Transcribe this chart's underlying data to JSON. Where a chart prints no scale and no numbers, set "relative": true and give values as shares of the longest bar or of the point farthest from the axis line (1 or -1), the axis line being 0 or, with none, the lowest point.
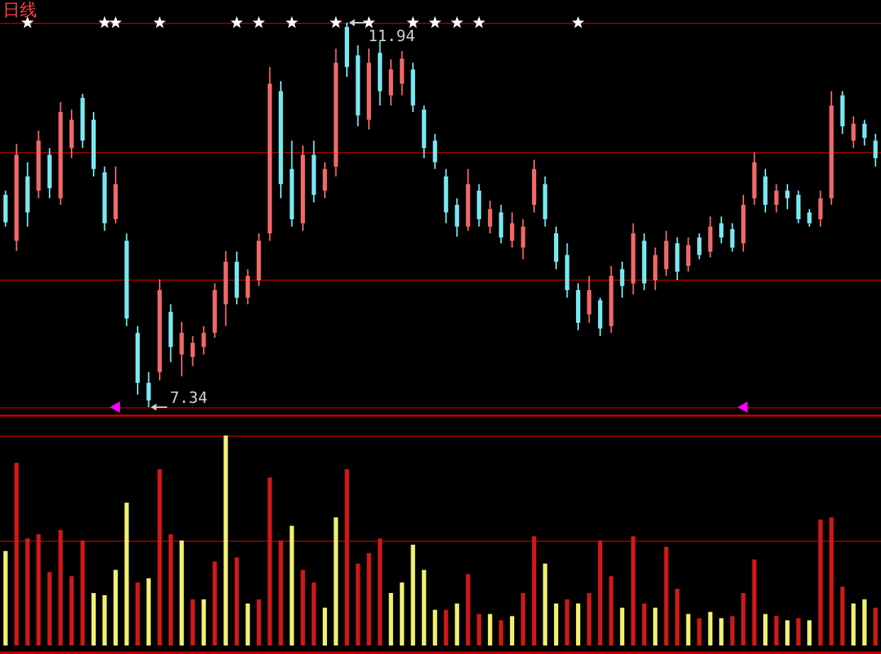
{
  "chart_data": [
    {
      "type": "candlestick",
      "title": "日线",
      "categories": [
        null,
        null,
        null,
        null,
        null,
        null,
        null,
        null,
        null,
        null,
        null,
        null,
        null,
        null,
        null,
        null,
        null,
        null,
        null,
        null,
        null,
        null,
        null,
        null,
        null,
        null,
        null,
        null,
        null,
        null,
        null,
        null,
        null,
        null,
        null,
        null,
        null,
        null,
        null,
        null,
        null,
        null,
        null,
        null,
        null,
        null,
        null,
        null,
        null,
        null,
        null,
        null,
        null,
        null,
        null,
        null,
        null,
        null,
        null,
        null,
        null,
        null,
        null,
        null,
        null,
        null,
        null,
        null,
        null,
        null,
        null,
        null,
        null,
        null,
        null,
        null,
        null,
        null,
        null,
        null
      ],
      "ohlc": [
        [
          9.88,
          9.93,
          9.5,
          9.55
        ],
        [
          9.33,
          10.49,
          9.21,
          10.36
        ],
        [
          10.1,
          10.27,
          9.5,
          9.67
        ],
        [
          9.93,
          10.65,
          9.84,
          10.53
        ],
        [
          10.36,
          10.44,
          9.84,
          9.96
        ],
        [
          9.84,
          10.99,
          9.76,
          10.87
        ],
        [
          10.44,
          10.9,
          10.32,
          10.78
        ],
        [
          11.04,
          11.09,
          10.44,
          10.53
        ],
        [
          10.78,
          10.87,
          10.1,
          10.19
        ],
        [
          10.15,
          10.22,
          9.45,
          9.54
        ],
        [
          9.59,
          10.22,
          9.54,
          10.01
        ],
        [
          9.33,
          9.42,
          8.31,
          8.4
        ],
        [
          8.23,
          8.31,
          7.49,
          7.63
        ],
        [
          7.63,
          7.76,
          7.34,
          7.42
        ],
        [
          7.76,
          8.87,
          7.66,
          8.74
        ],
        [
          8.48,
          8.57,
          7.88,
          8.06
        ],
        [
          7.97,
          8.36,
          7.71,
          8.23
        ],
        [
          7.94,
          8.19,
          7.83,
          8.11
        ],
        [
          8.06,
          8.31,
          7.97,
          8.23
        ],
        [
          8.23,
          8.82,
          8.17,
          8.74
        ],
        [
          8.57,
          9.21,
          8.31,
          9.08
        ],
        [
          9.08,
          9.2,
          8.57,
          8.65
        ],
        [
          8.65,
          8.99,
          8.57,
          8.91
        ],
        [
          8.86,
          9.42,
          8.79,
          9.33
        ],
        [
          9.42,
          11.41,
          9.33,
          11.21
        ],
        [
          11.12,
          11.24,
          9.84,
          10.01
        ],
        [
          10.19,
          10.53,
          9.5,
          9.59
        ],
        [
          9.54,
          10.47,
          9.45,
          10.36
        ],
        [
          10.36,
          10.53,
          9.79,
          9.88
        ],
        [
          9.93,
          10.27,
          9.84,
          10.19
        ],
        [
          10.22,
          11.63,
          10.1,
          11.46
        ],
        [
          11.89,
          11.94,
          11.29,
          11.41
        ],
        [
          11.55,
          11.67,
          10.7,
          10.83
        ],
        [
          10.78,
          11.63,
          10.66,
          11.46
        ],
        [
          11.58,
          11.72,
          10.95,
          11.12
        ],
        [
          11.07,
          11.5,
          10.95,
          11.38
        ],
        [
          11.21,
          11.6,
          11.07,
          11.51
        ],
        [
          11.38,
          11.46,
          10.87,
          10.95
        ],
        [
          10.9,
          10.95,
          10.32,
          10.44
        ],
        [
          10.53,
          10.61,
          10.19,
          10.27
        ],
        [
          10.1,
          10.19,
          9.54,
          9.67
        ],
        [
          9.76,
          9.84,
          9.38,
          9.5
        ],
        [
          9.5,
          10.19,
          9.45,
          10.01
        ],
        [
          9.93,
          10.01,
          9.5,
          9.59
        ],
        [
          9.5,
          9.81,
          9.42,
          9.71
        ],
        [
          9.67,
          9.76,
          9.3,
          9.37
        ],
        [
          9.33,
          9.67,
          9.25,
          9.54
        ],
        [
          9.25,
          9.59,
          9.11,
          9.5
        ],
        [
          9.76,
          10.3,
          9.67,
          10.19
        ],
        [
          10.01,
          10.1,
          9.5,
          9.59
        ],
        [
          9.42,
          9.5,
          8.99,
          9.08
        ],
        [
          9.16,
          9.3,
          8.65,
          8.74
        ],
        [
          8.74,
          8.82,
          8.26,
          8.35
        ],
        [
          8.45,
          8.91,
          8.35,
          8.74
        ],
        [
          8.62,
          8.65,
          8.19,
          8.28
        ],
        [
          8.31,
          9.03,
          8.23,
          8.91
        ],
        [
          8.99,
          9.08,
          8.65,
          8.79
        ],
        [
          8.82,
          9.54,
          8.69,
          9.42
        ],
        [
          9.33,
          9.42,
          8.74,
          8.82
        ],
        [
          8.86,
          9.25,
          8.74,
          9.16
        ],
        [
          8.99,
          9.45,
          8.91,
          9.33
        ],
        [
          9.3,
          9.37,
          8.86,
          8.96
        ],
        [
          9.03,
          9.37,
          8.96,
          9.28
        ],
        [
          9.37,
          9.42,
          9.11,
          9.16
        ],
        [
          9.2,
          9.62,
          9.13,
          9.5
        ],
        [
          9.54,
          9.62,
          9.3,
          9.37
        ],
        [
          9.47,
          9.54,
          9.2,
          9.25
        ],
        [
          9.3,
          9.88,
          9.2,
          9.76
        ],
        [
          9.84,
          10.39,
          9.76,
          10.27
        ],
        [
          10.1,
          10.19,
          9.67,
          9.76
        ],
        [
          9.76,
          10.01,
          9.67,
          9.93
        ],
        [
          9.93,
          10.01,
          9.71,
          9.84
        ],
        [
          9.88,
          9.93,
          9.54,
          9.59
        ],
        [
          9.67,
          9.71,
          9.5,
          9.54
        ],
        [
          9.59,
          9.93,
          9.5,
          9.84
        ],
        [
          9.84,
          11.12,
          9.76,
          10.95
        ],
        [
          11.07,
          11.12,
          10.61,
          10.7
        ],
        [
          10.53,
          10.82,
          10.44,
          10.73
        ],
        [
          10.73,
          10.78,
          10.47,
          10.56
        ],
        [
          10.53,
          10.61,
          10.22,
          10.32
        ]
      ],
      "colors": [
        "#78e8f0",
        "#f06868",
        "#78e8f0",
        "#f06868",
        "#78e8f0",
        "#f06868",
        "#f06868",
        "#78e8f0",
        "#78e8f0",
        "#78e8f0",
        "#f06868",
        "#78e8f0",
        "#78e8f0",
        "#78e8f0",
        "#f06868",
        "#78e8f0",
        "#f06868",
        "#f06868",
        "#f06868",
        "#f06868",
        "#f06868",
        "#78e8f0",
        "#f06868",
        "#f06868",
        "#f06868",
        "#78e8f0",
        "#78e8f0",
        "#f06868",
        "#78e8f0",
        "#f06868",
        "#f06868",
        "#78e8f0",
        "#78e8f0",
        "#f06868",
        "#78e8f0",
        "#f06868",
        "#f06868",
        "#78e8f0",
        "#78e8f0",
        "#78e8f0",
        "#78e8f0",
        "#78e8f0",
        "#f06868",
        "#78e8f0",
        "#f06868",
        "#78e8f0",
        "#f06868",
        "#f06868",
        "#f06868",
        "#78e8f0",
        "#78e8f0",
        "#78e8f0",
        "#78e8f0",
        "#f06868",
        "#78e8f0",
        "#f06868",
        "#78e8f0",
        "#f06868",
        "#78e8f0",
        "#f06868",
        "#f06868",
        "#78e8f0",
        "#f06868",
        "#78e8f0",
        "#f06868",
        "#78e8f0",
        "#78e8f0",
        "#f06868",
        "#f06868",
        "#78e8f0",
        "#f06868",
        "#78e8f0",
        "#78e8f0",
        "#78e8f0",
        "#f06868",
        "#f06868",
        "#78e8f0",
        "#f06868",
        "#78e8f0",
        "#78e8f0"
      ],
      "series": [
        {
          "type": "scatter",
          "color": "#ffffff",
          "marker": "star",
          "values": [
            null,
            null,
            11.94,
            null,
            null,
            null,
            null,
            null,
            null,
            11.94,
            11.94,
            null,
            null,
            null,
            11.94,
            null,
            null,
            null,
            null,
            null,
            null,
            11.94,
            null,
            11.94,
            null,
            null,
            11.94,
            null,
            null,
            null,
            11.94,
            null,
            null,
            11.94,
            null,
            null,
            null,
            11.94,
            null,
            11.94,
            null,
            11.94,
            null,
            11.94,
            null,
            null,
            null,
            null,
            null,
            null,
            null,
            null,
            11.94,
            null,
            null,
            null,
            null,
            null,
            null,
            null,
            null,
            null,
            null,
            null,
            null,
            null,
            null,
            null,
            null,
            null,
            null,
            null,
            null,
            null,
            null,
            null,
            null,
            null,
            null,
            null
          ]
        },
        {
          "type": "scatter",
          "color": "#ff00ff",
          "marker": "triangle",
          "values": [
            null,
            null,
            null,
            null,
            null,
            null,
            null,
            null,
            null,
            null,
            7.34,
            null,
            null,
            null,
            null,
            null,
            null,
            null,
            null,
            null,
            null,
            null,
            null,
            null,
            null,
            null,
            null,
            null,
            null,
            null,
            null,
            null,
            null,
            null,
            null,
            null,
            null,
            null,
            null,
            null,
            null,
            null,
            null,
            null,
            null,
            null,
            null,
            null,
            null,
            null,
            null,
            null,
            null,
            null,
            null,
            null,
            null,
            null,
            null,
            null,
            null,
            null,
            null,
            null,
            null,
            null,
            null,
            7.34,
            null,
            null,
            null,
            null,
            null,
            null,
            null,
            null,
            null,
            null,
            null,
            null
          ]
        }
      ],
      "ref_lines": [
        {
          "axis": "y",
          "value": 11.94,
          "color": "#800000"
        },
        {
          "axis": "y",
          "value": 10.4,
          "color": "#800000"
        },
        {
          "axis": "y",
          "value": 8.87,
          "color": "#800000"
        },
        {
          "axis": "y",
          "value": 7.34,
          "color": "#800000"
        }
      ],
      "annotations": [
        {
          "text": "11.94",
          "y": 11.94
        },
        {
          "text": "7.34",
          "y": 7.34
        }
      ]
    },
    {
      "type": "bar",
      "relative": true,
      "categories": [
        null,
        null,
        null,
        null,
        null,
        null,
        null,
        null,
        null,
        null,
        null,
        null,
        null,
        null,
        null,
        null,
        null,
        null,
        null,
        null,
        null,
        null,
        null,
        null,
        null,
        null,
        null,
        null,
        null,
        null,
        null,
        null,
        null,
        null,
        null,
        null,
        null,
        null,
        null,
        null,
        null,
        null,
        null,
        null,
        null,
        null,
        null,
        null,
        null,
        null,
        null,
        null,
        null,
        null,
        null,
        null,
        null,
        null,
        null,
        null,
        null,
        null,
        null,
        null,
        null,
        null,
        null,
        null,
        null,
        null,
        null,
        null,
        null,
        null,
        null,
        null,
        null,
        null,
        null,
        null
      ],
      "values": [
        0.45,
        0.87,
        0.51,
        0.53,
        0.35,
        0.55,
        0.33,
        0.5,
        0.25,
        0.24,
        0.36,
        0.68,
        0.3,
        0.32,
        0.84,
        0.53,
        0.5,
        0.22,
        0.22,
        0.4,
        1,
        0.42,
        0.2,
        0.22,
        0.8,
        0.5,
        0.57,
        0.36,
        0.3,
        0.18,
        0.61,
        0.84,
        0.39,
        0.44,
        0.51,
        0.25,
        0.3,
        0.48,
        0.36,
        0.17,
        0.17,
        0.2,
        0.34,
        0.15,
        0.15,
        0.12,
        0.14,
        0.25,
        0.52,
        0.39,
        0.2,
        0.22,
        0.2,
        0.25,
        0.5,
        0.33,
        0.18,
        0.52,
        0.2,
        0.18,
        0.47,
        0.27,
        0.15,
        0.13,
        0.16,
        0.13,
        0.14,
        0.25,
        0.41,
        0.15,
        0.14,
        0.12,
        0.13,
        0.12,
        0.6,
        0.61,
        0.28,
        0.2,
        0.22,
        0.18
      ],
      "colors": [
        "#f0f070",
        "#d01818",
        "#d01818",
        "#d01818",
        "#d01818",
        "#d01818",
        "#d01818",
        "#d01818",
        "#f0f070",
        "#f0f070",
        "#f0f070",
        "#f0f070",
        "#d01818",
        "#f0f070",
        "#d01818",
        "#d01818",
        "#f0f070",
        "#d01818",
        "#f0f070",
        "#d01818",
        "#f0f070",
        "#d01818",
        "#f0f070",
        "#d01818",
        "#d01818",
        "#d01818",
        "#f0f070",
        "#d01818",
        "#d01818",
        "#f0f070",
        "#f0f070",
        "#d01818",
        "#d01818",
        "#d01818",
        "#d01818",
        "#f0f070",
        "#f0f070",
        "#f0f070",
        "#f0f070",
        "#f0f070",
        "#d01818",
        "#f0f070",
        "#d01818",
        "#d01818",
        "#f0f070",
        "#d01818",
        "#f0f070",
        "#d01818",
        "#d01818",
        "#f0f070",
        "#f0f070",
        "#d01818",
        "#f0f070",
        "#d01818",
        "#d01818",
        "#d01818",
        "#f0f070",
        "#d01818",
        "#d01818",
        "#f0f070",
        "#d01818",
        "#d01818",
        "#f0f070",
        "#d01818",
        "#f0f070",
        "#f0f070",
        "#d01818",
        "#d01818",
        "#d01818",
        "#f0f070",
        "#d01818",
        "#f0f070",
        "#d01818",
        "#f0f070",
        "#d01818",
        "#d01818",
        "#d01818",
        "#f0f070",
        "#f0f070",
        "#d01818"
      ],
      "ref_lines": [
        {
          "axis": "y",
          "value": 1,
          "color": "#800000"
        },
        {
          "axis": "y",
          "value": 0.5,
          "color": "#800000"
        }
      ]
    }
  ]
}
